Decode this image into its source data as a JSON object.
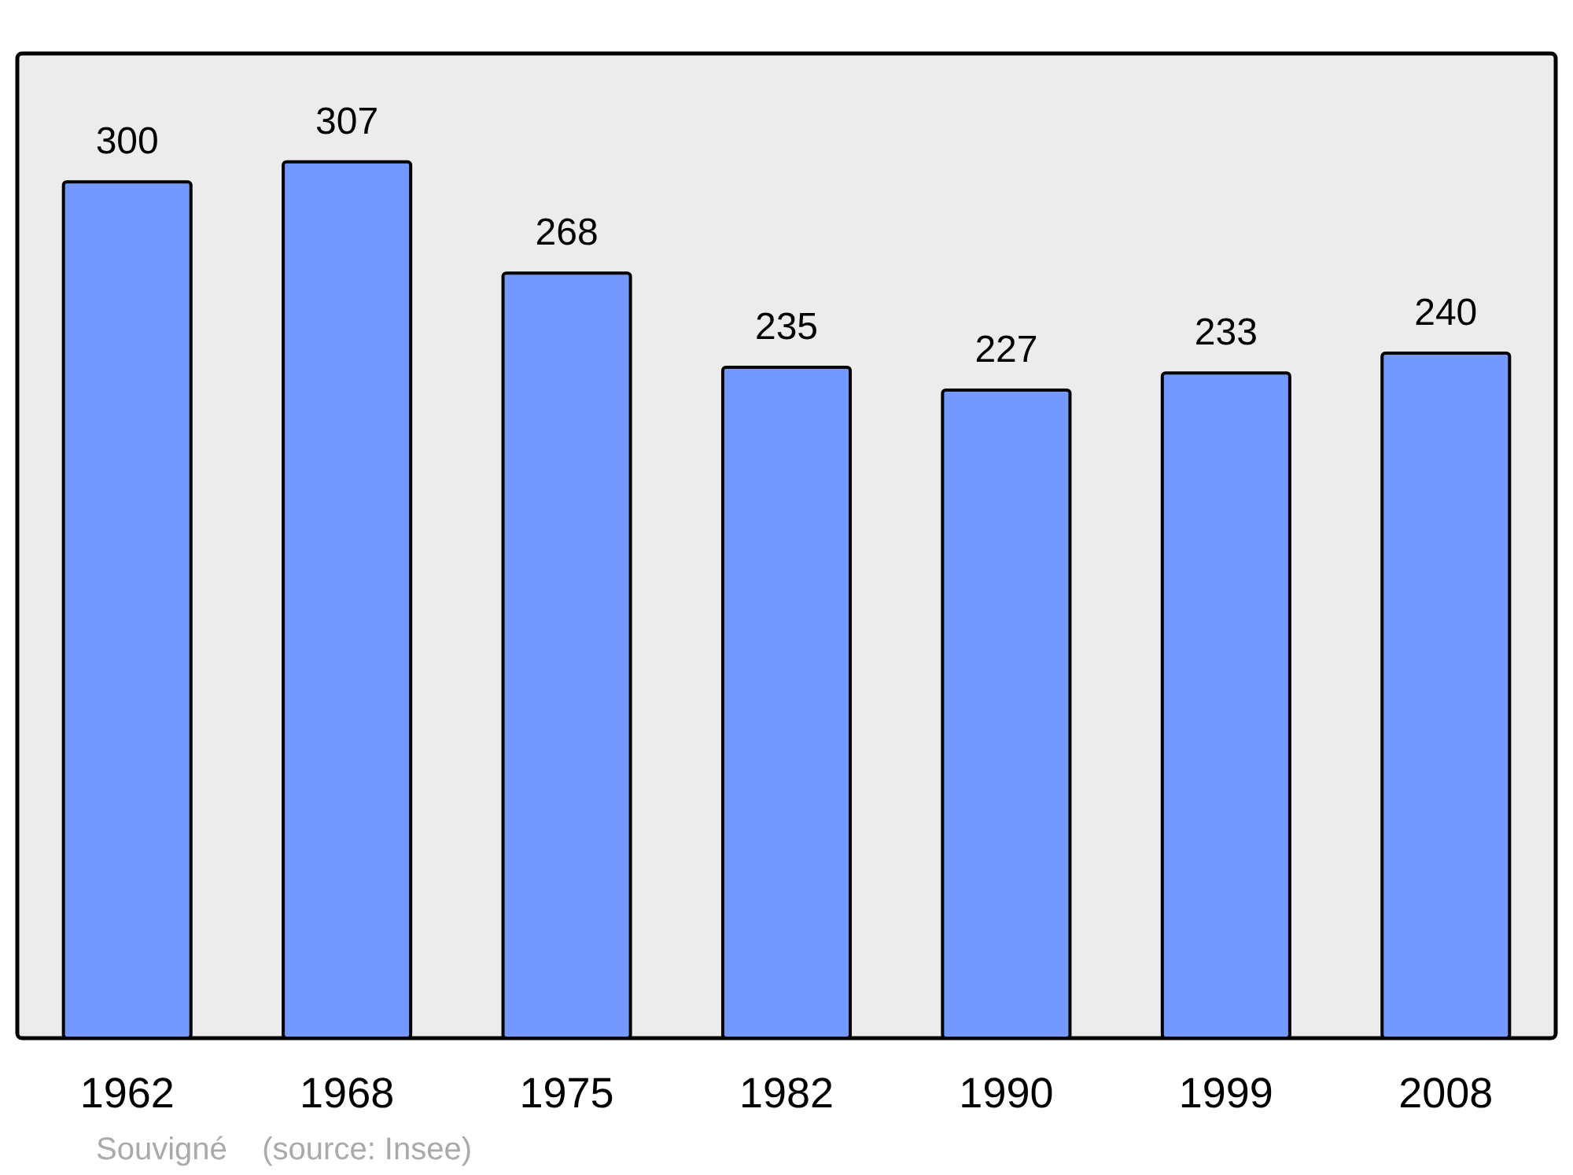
{
  "chart_data": {
    "type": "bar",
    "categories": [
      "1962",
      "1968",
      "1975",
      "1982",
      "1990",
      "1999",
      "2008"
    ],
    "values": [
      300,
      307,
      268,
      235,
      227,
      233,
      240
    ],
    "color": "#7399ff",
    "data_labels": true,
    "annotations": [
      "Souvigné    (source: Insee)"
    ]
  }
}
